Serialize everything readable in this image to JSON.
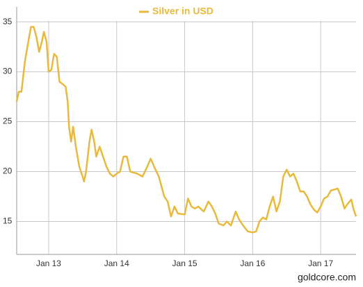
{
  "chart_data": {
    "type": "line",
    "series": [
      {
        "name": "Silver in USD",
        "color": "#e8b93a",
        "x": [
          2012.53,
          2012.56,
          2012.6,
          2012.65,
          2012.7,
          2012.74,
          2012.78,
          2012.82,
          2012.86,
          2012.9,
          2012.93,
          2012.97,
          2013.0,
          2013.04,
          2013.08,
          2013.12,
          2013.16,
          2013.2,
          2013.25,
          2013.28,
          2013.3,
          2013.33,
          2013.36,
          2013.4,
          2013.45,
          2013.5,
          2013.52,
          2013.55,
          2013.6,
          2013.63,
          2013.67,
          2013.7,
          2013.75,
          2013.8,
          2013.85,
          2013.9,
          2013.95,
          2014.0,
          2014.05,
          2014.1,
          2014.15,
          2014.2,
          2014.3,
          2014.38,
          2014.45,
          2014.5,
          2014.55,
          2014.62,
          2014.7,
          2014.75,
          2014.8,
          2014.85,
          2014.9,
          2015.0,
          2015.05,
          2015.1,
          2015.15,
          2015.2,
          2015.28,
          2015.35,
          2015.4,
          2015.45,
          2015.5,
          2015.57,
          2015.62,
          2015.68,
          2015.75,
          2015.8,
          2015.87,
          2015.93,
          2016.0,
          2016.05,
          2016.1,
          2016.15,
          2016.2,
          2016.25,
          2016.3,
          2016.35,
          2016.4,
          2016.45,
          2016.5,
          2016.55,
          2016.6,
          2016.65,
          2016.7,
          2016.75,
          2016.8,
          2016.85,
          2016.9,
          2016.95,
          2017.0,
          2017.05,
          2017.1,
          2017.15,
          2017.2,
          2017.25,
          2017.3,
          2017.35,
          2017.4,
          2017.45,
          2017.48,
          2017.52
        ],
        "values": [
          27.0,
          28,
          28,
          31,
          33,
          34.5,
          34.5,
          33.5,
          32,
          33,
          34,
          33,
          30,
          30.2,
          31.8,
          31.5,
          29,
          28.8,
          28.5,
          27,
          24.5,
          23,
          24.5,
          22.5,
          20.5,
          19.5,
          19,
          20,
          23,
          24.2,
          23,
          21.5,
          22.5,
          21.5,
          20.5,
          19.8,
          19.5,
          19.8,
          20,
          21.5,
          21.5,
          20,
          19.8,
          19.5,
          20.5,
          21.3,
          20.5,
          19.5,
          17.5,
          17,
          15.5,
          16.5,
          15.8,
          15.7,
          17.3,
          16.5,
          16.3,
          16.5,
          16,
          17,
          16.5,
          15.8,
          14.8,
          14.6,
          15,
          14.6,
          16,
          15.2,
          14.5,
          14,
          13.9,
          14,
          15,
          15.4,
          15.2,
          16.5,
          17.5,
          16,
          17,
          19.5,
          20.2,
          19.5,
          19.8,
          19,
          18,
          18,
          17.5,
          16.7,
          16.2,
          15.9,
          16.5,
          17.3,
          17.5,
          18.1,
          18.2,
          18.3,
          17.5,
          16.3,
          16.8,
          17.2,
          16.3,
          15.5
        ]
      }
    ],
    "xlim": [
      2012.53,
      2017.52
    ],
    "xticks": [
      {
        "value": 2013,
        "label": "Jan 13"
      },
      {
        "value": 2014,
        "label": "Jan 14"
      },
      {
        "value": 2015,
        "label": "Jan 15"
      },
      {
        "value": 2016,
        "label": "Jan 16"
      },
      {
        "value": 2017,
        "label": "Jan 17"
      }
    ],
    "ylim": [
      11.7,
      36.5
    ],
    "yticks": [
      15,
      20,
      25,
      30,
      35
    ],
    "grid": true,
    "source": "goldcore.com"
  }
}
